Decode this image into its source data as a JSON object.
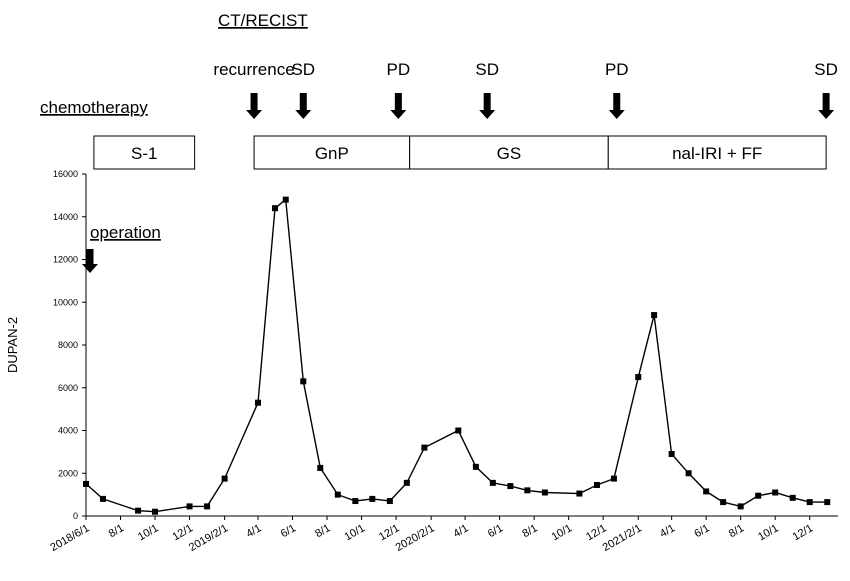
{
  "chart_data": {
    "type": "line",
    "title": "",
    "xlabel": "",
    "ylabel": "DUPAN-2",
    "ylim": [
      0,
      16000
    ],
    "yticks": [
      0,
      2000,
      4000,
      6000,
      8000,
      10000,
      12000,
      14000,
      16000
    ],
    "x_tick_labels": [
      "2018/6/1",
      "8/1",
      "10/1",
      "12/1",
      "2019/2/1",
      "4/1",
      "6/1",
      "8/1",
      "10/1",
      "12/1",
      "2020/2/1",
      "4/1",
      "6/1",
      "8/1",
      "10/1",
      "12/1",
      "2021/2/1",
      "4/1",
      "6/1",
      "8/1",
      "10/1",
      "12/1"
    ],
    "x_start": "2018-06-01",
    "x_end": "2022-01-20",
    "grid": false,
    "series": [
      {
        "name": "",
        "x": [
          "2018-06-01",
          "2018-07-01",
          "2018-09-01",
          "2018-10-01",
          "2018-12-01",
          "2019-01-01",
          "2019-02-01",
          "2019-04-01",
          "2019-05-01",
          "2019-05-20",
          "2019-06-20",
          "2019-07-20",
          "2019-08-20",
          "2019-09-20",
          "2019-10-20",
          "2019-11-20",
          "2019-12-20",
          "2020-01-20",
          "2020-03-20",
          "2020-04-20",
          "2020-05-20",
          "2020-06-20",
          "2020-07-20",
          "2020-08-20",
          "2020-10-20",
          "2020-11-20",
          "2020-12-20",
          "2021-02-01",
          "2021-03-01",
          "2021-04-01",
          "2021-05-01",
          "2021-06-01",
          "2021-07-01",
          "2021-08-01",
          "2021-09-01",
          "2021-10-01",
          "2021-11-01",
          "2021-12-01",
          "2022-01-01"
        ],
        "values": [
          1500,
          800,
          250,
          200,
          450,
          450,
          1750,
          5300,
          14400,
          14800,
          6300,
          2250,
          1000,
          700,
          800,
          700,
          1550,
          3200,
          4000,
          2300,
          1550,
          1400,
          1200,
          1100,
          1050,
          1450,
          1750,
          6500,
          9400,
          2900,
          2000,
          1150,
          650,
          450,
          950,
          1100,
          850,
          650,
          650
        ]
      }
    ],
    "annotations": {
      "ct_recist_header": "CT/RECIST",
      "chemotherapy_header": "chemotherapy",
      "operation_label": "operation",
      "operation_date": "2018-06-01",
      "evaluations": [
        {
          "label": "recurrence",
          "date": "2019-03-25"
        },
        {
          "label": "SD",
          "date": "2019-06-20"
        },
        {
          "label": "PD",
          "date": "2019-12-05"
        },
        {
          "label": "SD",
          "date": "2020-05-10"
        },
        {
          "label": "PD",
          "date": "2020-12-25"
        },
        {
          "label": "SD",
          "date": "2021-12-30"
        }
      ],
      "regimens": [
        {
          "label": "S-1",
          "start": "2018-06-15",
          "end": "2018-12-10"
        },
        {
          "label": "GnP",
          "start": "2019-03-25",
          "end": "2019-12-25"
        },
        {
          "label": "GS",
          "start": "2019-12-25",
          "end": "2020-12-10"
        },
        {
          "label": "nal-IRI + FF",
          "start": "2020-12-10",
          "end": "2021-12-30"
        }
      ]
    }
  }
}
